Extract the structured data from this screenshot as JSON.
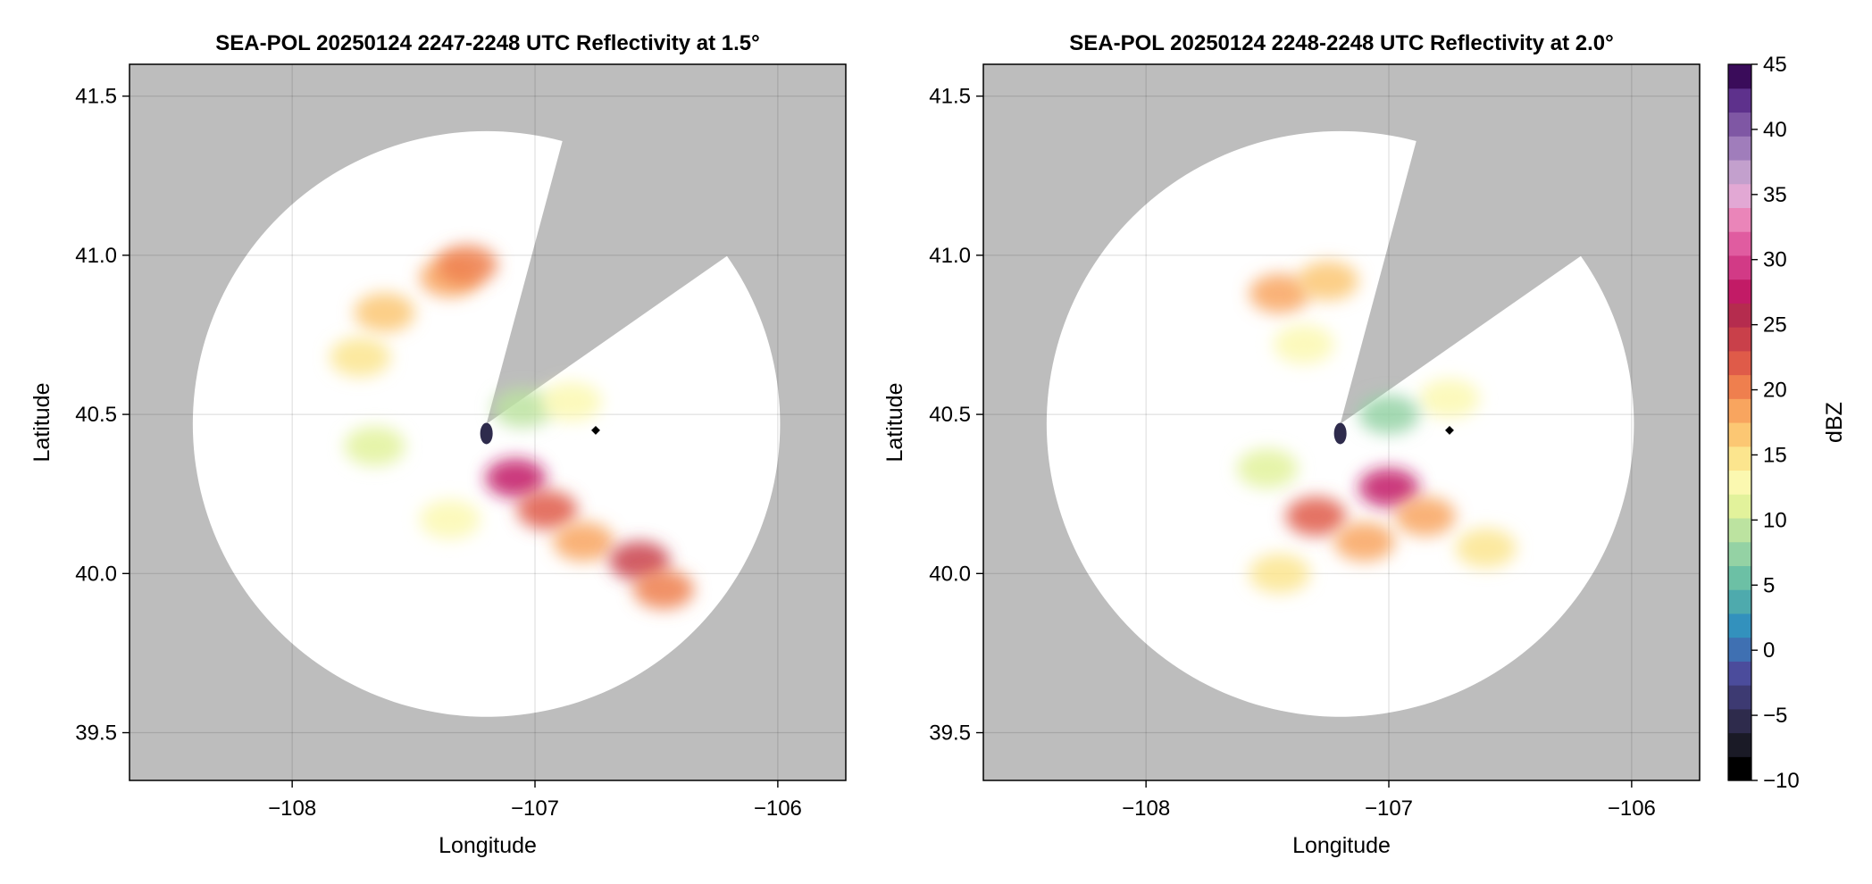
{
  "figure": {
    "background_color": "#bdbdbd",
    "coverage_color": "#ffffff",
    "marker_color": "#000000"
  },
  "chart_data": [
    {
      "type": "heatmap",
      "title": "SEA-POL 20250124 2247-2248 UTC Reflectivity at 1.5°",
      "xlabel": "Longitude",
      "ylabel": "Latitude",
      "xlim": [
        -108.67,
        -105.72
      ],
      "ylim": [
        39.35,
        41.6
      ],
      "xticks": [
        -108,
        -107,
        -106
      ],
      "xtick_labels": [
        "−108",
        "−107",
        "−106"
      ],
      "yticks": [
        39.5,
        40.0,
        40.5,
        41.0,
        41.5
      ],
      "ytick_labels": [
        "39.5",
        "40.0",
        "40.5",
        "41.0",
        "41.5"
      ],
      "grid": true,
      "radar_site": {
        "lon": -107.2,
        "lat": 40.47
      },
      "marker": {
        "lon": -106.75,
        "lat": 40.45
      },
      "blocked_sector_deg": [
        15,
        55
      ],
      "echo_cells": [
        {
          "lon": -107.62,
          "lat": 40.82,
          "dbz": 17
        },
        {
          "lon": -107.35,
          "lat": 40.93,
          "dbz": 18
        },
        {
          "lon": -107.28,
          "lat": 40.97,
          "dbz": 21
        },
        {
          "lon": -107.72,
          "lat": 40.68,
          "dbz": 14
        },
        {
          "lon": -107.66,
          "lat": 40.4,
          "dbz": 11
        },
        {
          "lon": -107.05,
          "lat": 40.52,
          "dbz": 9
        },
        {
          "lon": -106.85,
          "lat": 40.54,
          "dbz": 12
        },
        {
          "lon": -107.08,
          "lat": 40.3,
          "dbz": 27
        },
        {
          "lon": -106.95,
          "lat": 40.2,
          "dbz": 22
        },
        {
          "lon": -106.8,
          "lat": 40.1,
          "dbz": 18
        },
        {
          "lon": -106.57,
          "lat": 40.04,
          "dbz": 24
        },
        {
          "lon": -106.47,
          "lat": 39.95,
          "dbz": 20
        },
        {
          "lon": -107.35,
          "lat": 40.17,
          "dbz": 12
        },
        {
          "lon": -107.2,
          "lat": 40.44,
          "dbz": -5
        }
      ]
    },
    {
      "type": "heatmap",
      "title": "SEA-POL 20250124 2248-2248 UTC Reflectivity at 2.0°",
      "xlabel": "Longitude",
      "ylabel": "Latitude",
      "xlim": [
        -108.67,
        -105.72
      ],
      "ylim": [
        39.35,
        41.6
      ],
      "xticks": [
        -108,
        -107,
        -106
      ],
      "xtick_labels": [
        "−108",
        "−107",
        "−106"
      ],
      "yticks": [
        39.5,
        40.0,
        40.5,
        41.0,
        41.5
      ],
      "ytick_labels": [
        "39.5",
        "40.0",
        "40.5",
        "41.0",
        "41.5"
      ],
      "grid": true,
      "radar_site": {
        "lon": -107.2,
        "lat": 40.47
      },
      "marker": {
        "lon": -106.75,
        "lat": 40.45
      },
      "blocked_sector_deg": [
        15,
        55
      ],
      "echo_cells": [
        {
          "lon": -107.45,
          "lat": 40.88,
          "dbz": 19
        },
        {
          "lon": -107.25,
          "lat": 40.92,
          "dbz": 17
        },
        {
          "lon": -107.35,
          "lat": 40.72,
          "dbz": 12
        },
        {
          "lon": -106.75,
          "lat": 40.55,
          "dbz": 13
        },
        {
          "lon": -107.0,
          "lat": 40.5,
          "dbz": 8
        },
        {
          "lon": -107.5,
          "lat": 40.33,
          "dbz": 11
        },
        {
          "lon": -107.0,
          "lat": 40.27,
          "dbz": 27
        },
        {
          "lon": -107.3,
          "lat": 40.18,
          "dbz": 22
        },
        {
          "lon": -106.85,
          "lat": 40.18,
          "dbz": 18
        },
        {
          "lon": -107.1,
          "lat": 40.1,
          "dbz": 19
        },
        {
          "lon": -107.45,
          "lat": 40.0,
          "dbz": 15
        },
        {
          "lon": -106.6,
          "lat": 40.08,
          "dbz": 14
        },
        {
          "lon": -107.2,
          "lat": 40.44,
          "dbz": -5
        }
      ]
    }
  ],
  "colorbar": {
    "label": "dBZ",
    "min": -10,
    "max": 45,
    "ticks": [
      -10,
      -5,
      0,
      5,
      10,
      15,
      20,
      25,
      30,
      35,
      40,
      45
    ],
    "tick_labels": [
      "−10",
      "−5",
      "0",
      "5",
      "10",
      "15",
      "20",
      "25",
      "30",
      "35",
      "40",
      "45"
    ],
    "colors": [
      "#000000",
      "#1a1a26",
      "#2e2b4c",
      "#3d3a72",
      "#4b4c9c",
      "#3f70b2",
      "#3391bd",
      "#4eaaad",
      "#6cc0a5",
      "#94d2a4",
      "#bce3a0",
      "#e2f29b",
      "#fbf8b0",
      "#fce58e",
      "#fcc773",
      "#f8a55f",
      "#ef7f4e",
      "#df5b49",
      "#c9404a",
      "#b52c4e",
      "#c21b66",
      "#d23a86",
      "#e05ca0",
      "#ea85b9",
      "#e2a8d4",
      "#c3a0cd",
      "#a07dbb",
      "#7f57a4",
      "#5e318c",
      "#3a0c5a"
    ]
  }
}
